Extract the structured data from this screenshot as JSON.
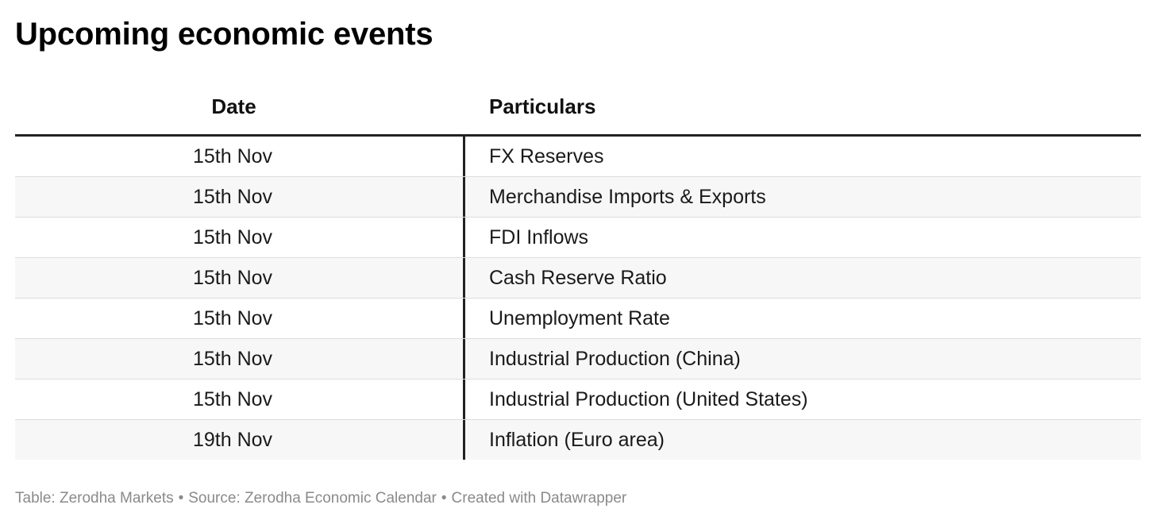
{
  "title": "Upcoming economic events",
  "table": {
    "columns": {
      "date": "Date",
      "particulars": "Particulars"
    },
    "rows": [
      {
        "date": "15th Nov",
        "particulars": "FX Reserves"
      },
      {
        "date": "15th Nov",
        "particulars": "Merchandise Imports & Exports"
      },
      {
        "date": "15th Nov",
        "particulars": "FDI Inflows"
      },
      {
        "date": "15th Nov",
        "particulars": "Cash Reserve Ratio"
      },
      {
        "date": "15th Nov",
        "particulars": "Unemployment Rate"
      },
      {
        "date": "15th Nov",
        "particulars": "Industrial Production (China)"
      },
      {
        "date": "15th Nov",
        "particulars": "Industrial Production (United States)"
      },
      {
        "date": "19th Nov",
        "particulars": "Inflation (Euro area)"
      }
    ]
  },
  "footer": {
    "table_credit": "Table: Zerodha Markets",
    "source": "Source: Zerodha Economic Calendar",
    "created_with": "Created with Datawrapper",
    "separator": "•"
  },
  "colors": {
    "title": "#000000",
    "header_rule": "#222222",
    "row_shade": "#f7f7f7",
    "row_divider": "#dddddd",
    "footer_text": "#8a8a8a"
  }
}
